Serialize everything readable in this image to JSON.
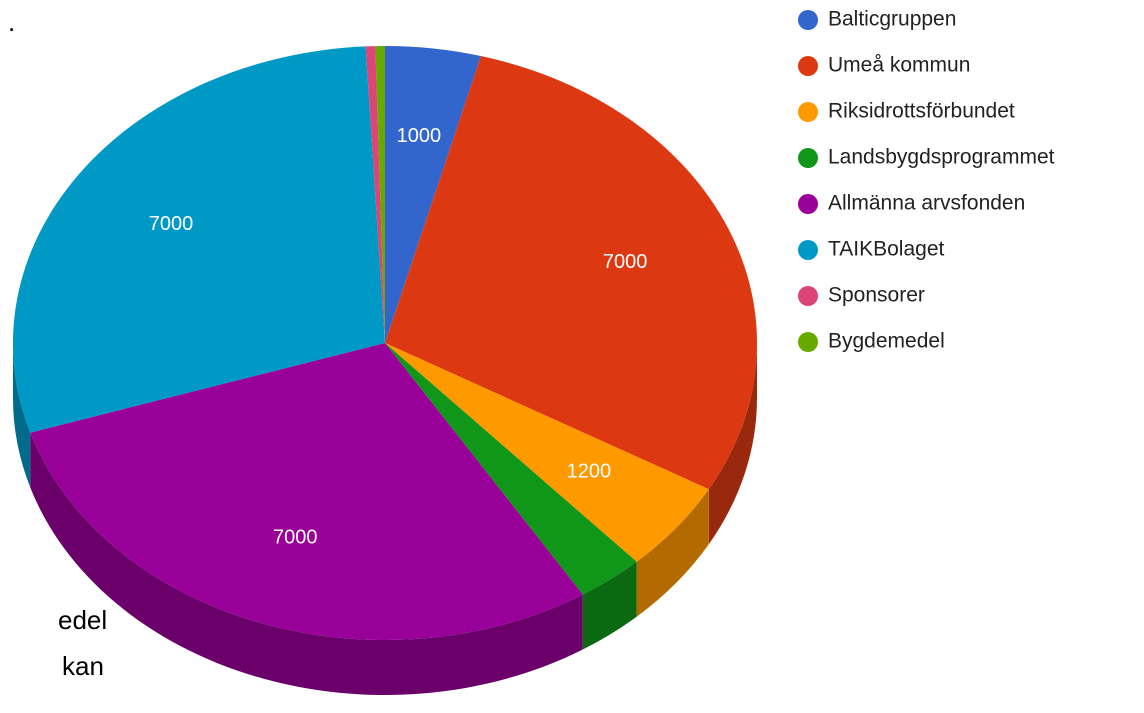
{
  "chart_data": {
    "type": "pie",
    "categories": [
      "Balticgruppen",
      "Umeå kommun",
      "Riksidrottsförbundet",
      "Landsbygdsprogrammet",
      "Allmänna arvsfonden",
      "TAIKBolaget",
      "Sponsorer",
      "Bygdemedel"
    ],
    "values": [
      1000,
      7000,
      1200,
      700,
      7000,
      7000,
      100,
      100
    ],
    "colors": [
      "#3366cc",
      "#dc3912",
      "#ff9900",
      "#109618",
      "#990099",
      "#0099c6",
      "#dd4477",
      "#66aa00"
    ],
    "legend": "right"
  },
  "background_text": [
    ".",
    "edel",
    "kan"
  ]
}
